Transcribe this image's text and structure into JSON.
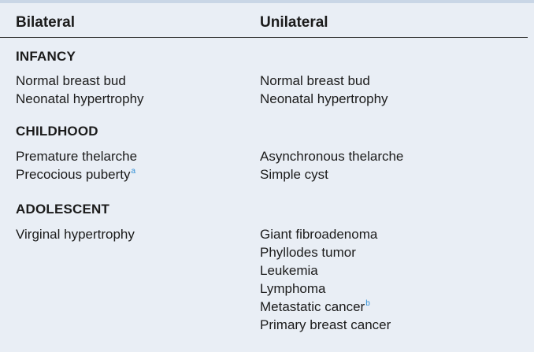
{
  "table": {
    "headers": [
      "Bilateral",
      "Unilateral"
    ],
    "sections": [
      {
        "title": "INFANCY",
        "bilateral": [
          {
            "text": "Normal breast bud",
            "footnote": ""
          },
          {
            "text": "Neonatal hypertrophy",
            "footnote": ""
          }
        ],
        "unilateral": [
          {
            "text": "Normal breast bud",
            "footnote": ""
          },
          {
            "text": "Neonatal hypertrophy",
            "footnote": ""
          }
        ]
      },
      {
        "title": "CHILDHOOD",
        "bilateral": [
          {
            "text": "Premature thelarche",
            "footnote": ""
          },
          {
            "text": "Precocious puberty",
            "footnote": "a"
          }
        ],
        "unilateral": [
          {
            "text": "Asynchronous thelarche",
            "footnote": ""
          },
          {
            "text": "Simple cyst",
            "footnote": ""
          }
        ]
      },
      {
        "title": "ADOLESCENT",
        "bilateral": [
          {
            "text": "Virginal hypertrophy",
            "footnote": ""
          }
        ],
        "unilateral": [
          {
            "text": "Giant fibroadenoma",
            "footnote": ""
          },
          {
            "text": "Phyllodes tumor",
            "footnote": ""
          },
          {
            "text": "Leukemia",
            "footnote": ""
          },
          {
            "text": "Lymphoma",
            "footnote": ""
          },
          {
            "text": "Metastatic cancer",
            "footnote": "b"
          },
          {
            "text": "Primary breast cancer",
            "footnote": ""
          }
        ]
      }
    ]
  },
  "colors": {
    "background": "#e9eef5",
    "top_border": "#c9d6e6",
    "footnote_marker": "#2f8fd6"
  }
}
